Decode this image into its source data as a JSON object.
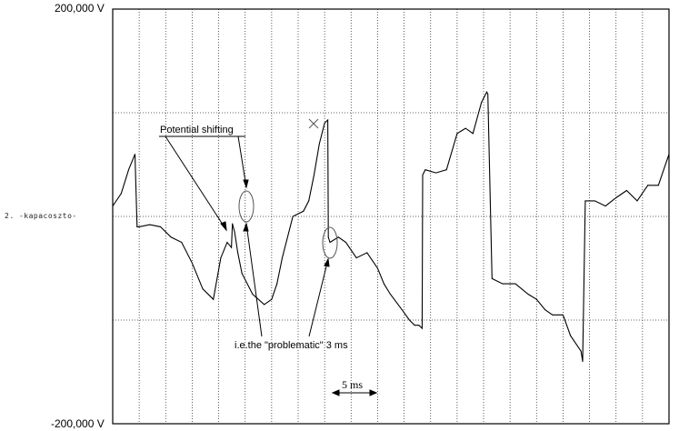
{
  "chart_data": {
    "type": "line",
    "title": "",
    "xlabel": "",
    "ylabel": "",
    "y_top_label": "200,000 V",
    "y_bottom_label": "-200,000 V",
    "channel_label": "2. -kapacoszto-",
    "ylim": [
      -200,
      200
    ],
    "xlim_ms": [
      0,
      52.5
    ],
    "x_grid_step_ms": 2.5,
    "y_grid_step_V": 100,
    "grid": true,
    "series": [
      {
        "color": "#000000",
        "x": [
          0,
          0.8,
          1.5,
          2.1,
          2.3,
          2.5,
          3.5,
          4.5,
          5.5,
          6.5,
          7.5,
          8.5,
          9.5,
          10.2,
          10.8,
          11.2,
          11.3,
          11.5,
          11.8,
          12.2,
          13.2,
          14.3,
          15.0,
          15.5,
          16.0,
          17.0,
          18.0,
          18.5,
          19.0,
          19.5,
          20.0,
          20.3,
          20.35,
          20.5,
          21.3,
          22.0,
          23.0,
          24.0,
          25.0,
          25.6,
          26.2,
          27.3,
          28.0,
          28.5,
          28.9,
          29.2,
          29.25,
          29.5,
          30.5,
          31.5,
          32.5,
          33.3,
          34.0,
          34.8,
          35.3,
          35.4,
          35.8,
          36.8,
          38.0,
          39.2,
          40.0,
          40.8,
          41.5,
          42.5,
          43.2,
          44.2,
          44.35,
          44.6,
          45.5,
          46.5,
          47.5,
          48.5,
          49.5,
          50.5,
          51.5,
          52.5
        ],
        "values": [
          10,
          22,
          45,
          60,
          -10,
          -10,
          -8,
          -10,
          -20,
          -25,
          -45,
          -70,
          -80,
          -40,
          -25,
          -30,
          -7,
          -15,
          -35,
          -55,
          -75,
          -85,
          -80,
          -65,
          -40,
          0,
          5,
          15,
          40,
          70,
          90,
          93,
          -20,
          -25,
          -20,
          -25,
          -40,
          -35,
          -50,
          -65,
          -75,
          -90,
          -100,
          -105,
          -105,
          -108,
          40,
          45,
          42,
          45,
          80,
          85,
          80,
          110,
          120,
          118,
          -60,
          -65,
          -65,
          -75,
          -80,
          -90,
          -95,
          -95,
          -115,
          -130,
          -140,
          15,
          15,
          10,
          18,
          25,
          15,
          30,
          30,
          60
        ]
      }
    ],
    "annotations": [
      {
        "text": "Potential shifting"
      },
      {
        "text": "i.e.the \"problematic\" 3 ms"
      },
      {
        "text": "5 ms"
      }
    ]
  }
}
